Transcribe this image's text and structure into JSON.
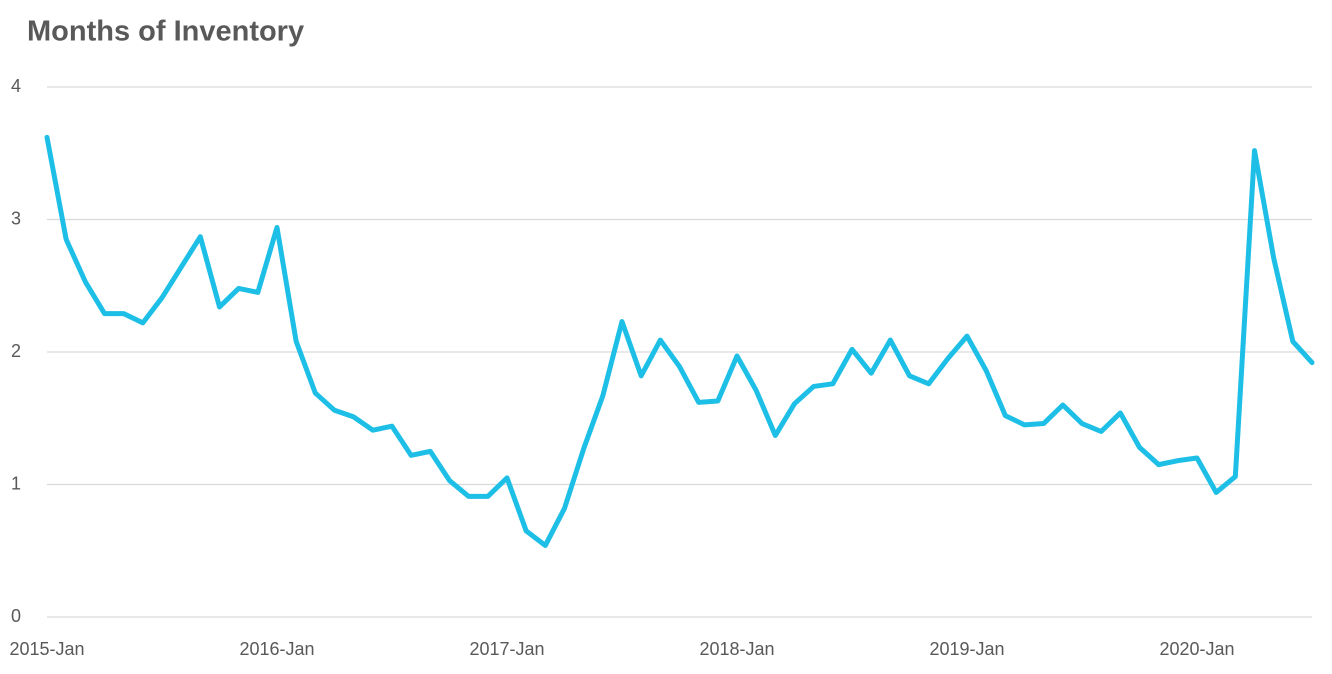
{
  "chart_data": {
    "type": "line",
    "title": "Months of Inventory",
    "categories": [
      "2015-Jan",
      null,
      null,
      null,
      null,
      null,
      null,
      null,
      null,
      null,
      null,
      null,
      "2016-Jan",
      null,
      null,
      null,
      null,
      null,
      null,
      null,
      null,
      null,
      null,
      null,
      "2017-Jan",
      null,
      null,
      null,
      null,
      null,
      null,
      null,
      null,
      null,
      null,
      null,
      "2018-Jan",
      null,
      null,
      null,
      null,
      null,
      null,
      null,
      null,
      null,
      null,
      null,
      "2019-Jan",
      null,
      null,
      null,
      null,
      null,
      null,
      null,
      null,
      null,
      null,
      null,
      "2020-Jan",
      null,
      null,
      null,
      null,
      null,
      null
    ],
    "series": [
      {
        "name": "Months of Inventory",
        "color": "#1ebfe6",
        "values": [
          3.62,
          2.85,
          2.53,
          2.29,
          2.29,
          2.22,
          2.41,
          2.64,
          2.87,
          2.34,
          2.48,
          2.45,
          2.94,
          2.08,
          1.69,
          1.56,
          1.51,
          1.41,
          1.44,
          1.22,
          1.25,
          1.03,
          0.91,
          0.91,
          1.05,
          0.65,
          0.54,
          0.82,
          1.27,
          1.67,
          2.23,
          1.82,
          2.09,
          1.89,
          1.62,
          1.63,
          1.97,
          1.71,
          1.37,
          1.61,
          1.74,
          1.76,
          2.02,
          1.84,
          2.09,
          1.82,
          1.76,
          1.95,
          2.12,
          1.86,
          1.52,
          1.45,
          1.46,
          1.6,
          1.46,
          1.4,
          1.54,
          1.28,
          1.15,
          1.18,
          1.2,
          0.94,
          1.06,
          3.52,
          2.71,
          2.08,
          1.92
        ]
      }
    ],
    "ylim": [
      0,
      4
    ],
    "yticks": [
      0,
      1,
      2,
      3,
      4
    ],
    "grid": true
  }
}
